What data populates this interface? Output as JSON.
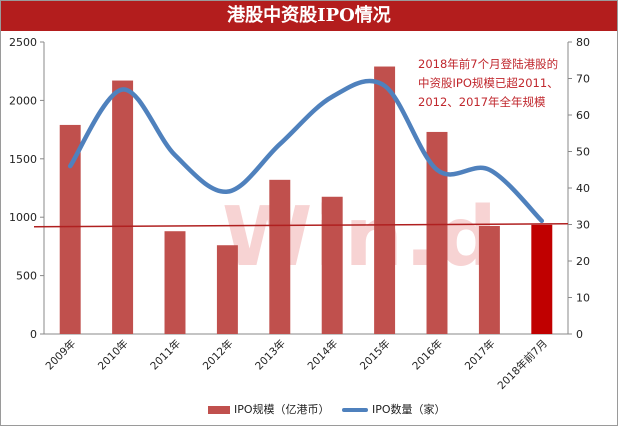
{
  "title": "港股中资股IPO情况",
  "watermark": "Win.d",
  "annotation": [
    "2018年前7个月登陆港股的",
    "中资股IPO规模已超2011、",
    "2012、2017年全年规模"
  ],
  "legend": {
    "bar_label": "IPO规模（亿港币）",
    "line_label": "IPO数量（家）"
  },
  "colors": {
    "bar": "#c0504d",
    "bar_highlight": "#c00000",
    "line": "#4f81bd",
    "ref_line": "#b02020",
    "title_bg": "#b31d1d"
  },
  "chart_data": {
    "type": "bar+line",
    "categories": [
      "2009年",
      "2010年",
      "2011年",
      "2012年",
      "2013年",
      "2014年",
      "2015年",
      "2016年",
      "2017年",
      "2018年前7月"
    ],
    "series": [
      {
        "name": "IPO规模（亿港币）",
        "type": "bar",
        "axis": "left",
        "values": [
          1790,
          2170,
          880,
          760,
          1320,
          1175,
          2290,
          1730,
          925,
          935
        ]
      },
      {
        "name": "IPO数量（家）",
        "type": "line",
        "axis": "right",
        "values": [
          46,
          67,
          49,
          39,
          52,
          65,
          68,
          45,
          45,
          31
        ]
      }
    ],
    "reference_line": {
      "axis": "left",
      "value": 935
    },
    "highlight_index": 9,
    "y_left": {
      "range": [
        0,
        2500
      ],
      "ticks": [
        "0",
        "500",
        "1000",
        "1500",
        "2000",
        "2500"
      ]
    },
    "y_right": {
      "range": [
        0,
        80
      ],
      "ticks": [
        "0",
        "10",
        "20",
        "30",
        "40",
        "50",
        "60",
        "70",
        "80"
      ]
    },
    "grid": false,
    "legend_position": "bottom"
  }
}
